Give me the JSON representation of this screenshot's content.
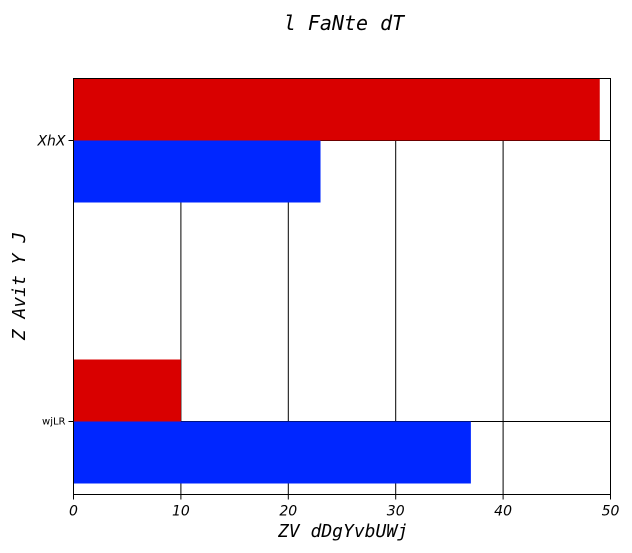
{
  "chart_data": {
    "type": "bar",
    "orientation": "horizontal",
    "title": "l FaNte  dT",
    "xlabel": "ZV dDgYvbUWj",
    "ylabel": "Z Avit Y  J",
    "categories": [
      "XhX",
      "wjLR"
    ],
    "series": [
      {
        "values": [
          49,
          10
        ],
        "color": "#d90000"
      },
      {
        "values": [
          23,
          37
        ],
        "color": "#0026ff"
      }
    ],
    "xlim": [
      0,
      50
    ],
    "xticks": [
      "0",
      "10",
      "20",
      "30",
      "40",
      "50"
    ],
    "grid": "vertical-lines"
  }
}
